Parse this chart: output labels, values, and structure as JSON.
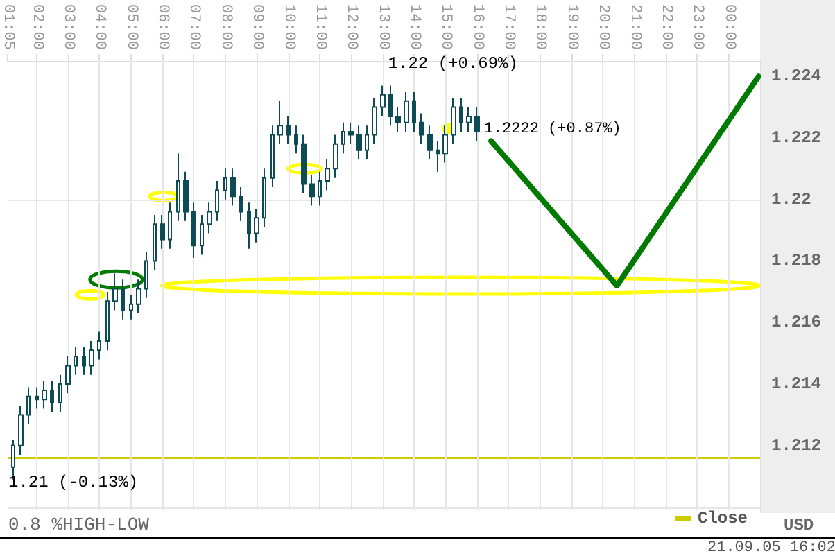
{
  "chart_data": {
    "type": "candlestick",
    "ylabel": "USD",
    "color": "#0d4b55",
    "annotations": [
      "1.22 (+0.69%)",
      "1.2222 (+0.87%)",
      "1.21 (-0.13%)",
      "0.8 %HIGH-LOW",
      "21.09.05 16:02"
    ],
    "x": [
      1.25,
      1.5,
      1.75,
      2,
      2.25,
      2.5,
      2.75,
      3,
      3.25,
      3.5,
      3.75,
      4,
      4.25,
      4.5,
      4.75,
      5,
      5.25,
      5.5,
      5.75,
      6,
      6.25,
      6.5,
      6.75,
      7,
      7.25,
      7.5,
      7.75,
      8,
      8.25,
      8.5,
      8.75,
      9,
      9.25,
      9.5,
      9.75,
      10,
      10.25,
      10.5,
      10.75,
      11,
      11.25,
      11.5,
      11.75,
      12,
      12.25,
      12.5,
      12.75,
      13,
      13.25,
      13.5,
      13.75,
      14,
      14.25,
      14.5,
      14.75,
      15,
      15.25,
      15.5,
      15.75,
      16
    ],
    "ohlc": [
      [
        1.2113,
        1.2122,
        1.2109,
        1.212
      ],
      [
        1.212,
        1.2133,
        1.2117,
        1.213
      ],
      [
        1.213,
        1.2139,
        1.2127,
        1.2136
      ],
      [
        1.2136,
        1.2139,
        1.2132,
        1.2135
      ],
      [
        1.2135,
        1.2141,
        1.2132,
        1.2138
      ],
      [
        1.2138,
        1.2141,
        1.2131,
        1.2134
      ],
      [
        1.2134,
        1.2143,
        1.2131,
        1.214
      ],
      [
        1.214,
        1.2149,
        1.2137,
        1.2146
      ],
      [
        1.2146,
        1.2152,
        1.2143,
        1.2149
      ],
      [
        1.2149,
        1.2152,
        1.2143,
        1.2146
      ],
      [
        1.2146,
        1.2154,
        1.2143,
        1.2151
      ],
      [
        1.2151,
        1.2157,
        1.2148,
        1.2154
      ],
      [
        1.2154,
        1.217,
        1.2151,
        1.2167
      ],
      [
        1.2167,
        1.2176,
        1.2164,
        1.2171
      ],
      [
        1.2171,
        1.2174,
        1.2161,
        1.2164
      ],
      [
        1.2164,
        1.2169,
        1.2161,
        1.2166
      ],
      [
        1.2166,
        1.2174,
        1.2163,
        1.2171
      ],
      [
        1.2171,
        1.2183,
        1.2168,
        1.218
      ],
      [
        1.218,
        1.2195,
        1.2177,
        1.2192
      ],
      [
        1.2192,
        1.2195,
        1.2184,
        1.2187
      ],
      [
        1.2187,
        1.2199,
        1.2184,
        1.2196
      ],
      [
        1.2196,
        1.2215,
        1.2193,
        1.2206
      ],
      [
        1.2206,
        1.2209,
        1.2193,
        1.2196
      ],
      [
        1.2196,
        1.2199,
        1.2181,
        1.2185
      ],
      [
        1.2185,
        1.2195,
        1.2182,
        1.2192
      ],
      [
        1.2192,
        1.2199,
        1.2189,
        1.2196
      ],
      [
        1.2196,
        1.2206,
        1.2193,
        1.2203
      ],
      [
        1.2203,
        1.221,
        1.22,
        1.2207
      ],
      [
        1.2207,
        1.221,
        1.2198,
        1.2201
      ],
      [
        1.2201,
        1.2204,
        1.2193,
        1.2196
      ],
      [
        1.2196,
        1.2199,
        1.2184,
        1.2189
      ],
      [
        1.2189,
        1.2197,
        1.2186,
        1.2194
      ],
      [
        1.2194,
        1.221,
        1.2191,
        1.2207
      ],
      [
        1.2207,
        1.2224,
        1.2204,
        1.2221
      ],
      [
        1.2221,
        1.2232,
        1.2218,
        1.2224
      ],
      [
        1.2224,
        1.2227,
        1.2218,
        1.2221
      ],
      [
        1.2221,
        1.2224,
        1.2215,
        1.2218
      ],
      [
        1.2218,
        1.2221,
        1.2202,
        1.2205
      ],
      [
        1.2205,
        1.2208,
        1.2198,
        1.2201
      ],
      [
        1.2201,
        1.2209,
        1.2198,
        1.2206
      ],
      [
        1.2206,
        1.2213,
        1.2203,
        1.221
      ],
      [
        1.221,
        1.2221,
        1.2207,
        1.2218
      ],
      [
        1.2218,
        1.2225,
        1.2215,
        1.2222
      ],
      [
        1.2222,
        1.2225,
        1.2218,
        1.2221
      ],
      [
        1.2221,
        1.2224,
        1.2213,
        1.2216
      ],
      [
        1.2216,
        1.2224,
        1.2213,
        1.2221
      ],
      [
        1.2221,
        1.2233,
        1.2218,
        1.223
      ],
      [
        1.223,
        1.2237,
        1.2227,
        1.2234
      ],
      [
        1.2234,
        1.2237,
        1.2224,
        1.2227
      ],
      [
        1.2227,
        1.223,
        1.2222,
        1.2225
      ],
      [
        1.2225,
        1.2235,
        1.2222,
        1.2232
      ],
      [
        1.2232,
        1.2235,
        1.2222,
        1.2225
      ],
      [
        1.2225,
        1.2228,
        1.2218,
        1.2221
      ],
      [
        1.2221,
        1.2224,
        1.2213,
        1.2216
      ],
      [
        1.2216,
        1.2219,
        1.2209,
        1.2215
      ],
      [
        1.2215,
        1.2224,
        1.2212,
        1.2221
      ],
      [
        1.2221,
        1.2233,
        1.2218,
        1.223
      ],
      [
        1.223,
        1.2233,
        1.2222,
        1.2225
      ],
      [
        1.2225,
        1.223,
        1.2222,
        1.2227
      ],
      [
        1.2227,
        1.223,
        1.2219,
        1.2222
      ]
    ],
    "series": [
      {
        "type": "line",
        "color": "#007a00",
        "x": [
          16.45,
          20.45,
          24.95
        ],
        "values": [
          1.2219,
          1.2172,
          1.224
        ]
      }
    ],
    "xlim": [
      1.0833,
      25
    ],
    "xticks": [
      {
        "value": 1.0833,
        "label": "01:05"
      },
      {
        "value": 2,
        "label": "02:00"
      },
      {
        "value": 3,
        "label": "03:00"
      },
      {
        "value": 4,
        "label": "04:00"
      },
      {
        "value": 5,
        "label": "05:00"
      },
      {
        "value": 6,
        "label": "06:00"
      },
      {
        "value": 7,
        "label": "07:00"
      },
      {
        "value": 8,
        "label": "08:00"
      },
      {
        "value": 9,
        "label": "09:00"
      },
      {
        "value": 10,
        "label": "10:00"
      },
      {
        "value": 11,
        "label": "11:00"
      },
      {
        "value": 12,
        "label": "12:00"
      },
      {
        "value": 13,
        "label": "13:00"
      },
      {
        "value": 14,
        "label": "14:00"
      },
      {
        "value": 15,
        "label": "15:00"
      },
      {
        "value": 16,
        "label": "16:00"
      },
      {
        "value": 17,
        "label": "17:00"
      },
      {
        "value": 18,
        "label": "18:00"
      },
      {
        "value": 19,
        "label": "19:00"
      },
      {
        "value": 20,
        "label": "20:00"
      },
      {
        "value": 21,
        "label": "21:00"
      },
      {
        "value": 22,
        "label": "22:00"
      },
      {
        "value": 23,
        "label": "23:00"
      },
      {
        "value": 24,
        "label": "00:00"
      }
    ],
    "ylim": [
      1.2099,
      1.2245
    ],
    "yticks": [
      1.212,
      1.214,
      1.216,
      1.218,
      1.22,
      1.222,
      1.224
    ],
    "ref_lines": [
      {
        "axis": "y",
        "value": 1.2116,
        "label": "Close",
        "color": "#cccc00"
      }
    ],
    "grid": true,
    "legend": "bottom right",
    "marker": "none",
    "line_style": "solid"
  }
}
